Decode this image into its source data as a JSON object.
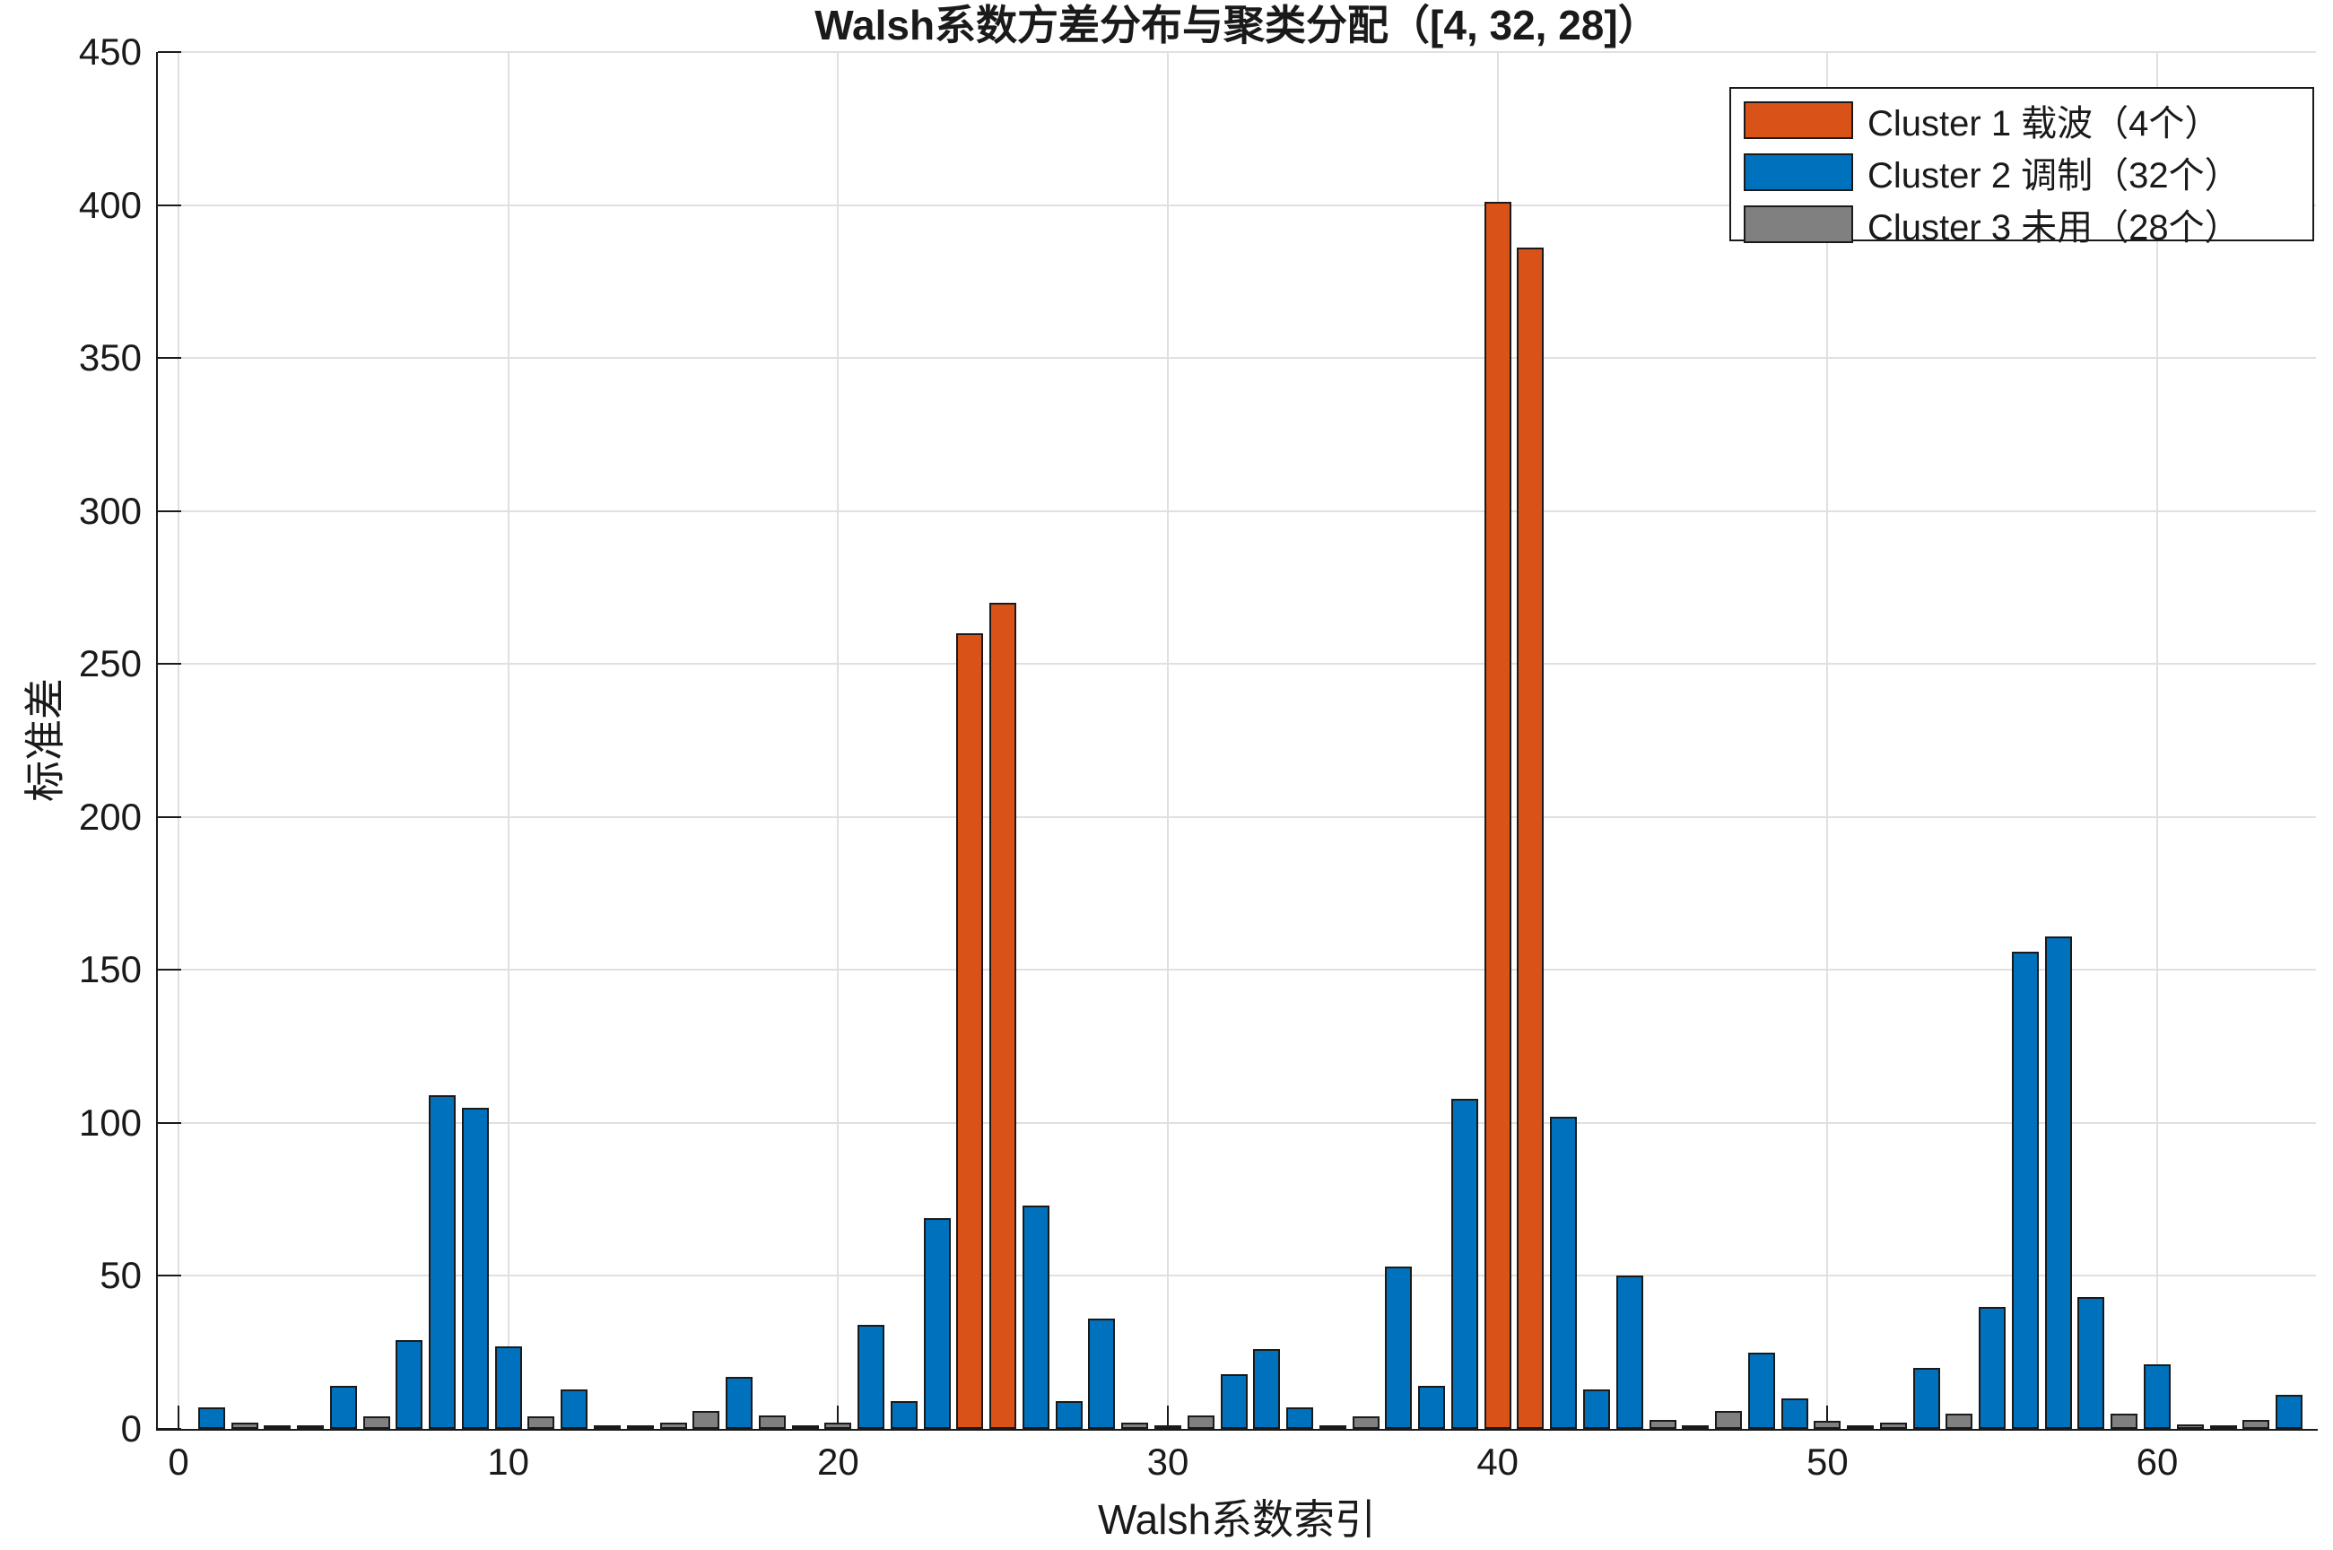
{
  "figure": {
    "title": "Walsh系数方差分布与聚类分配（[4, 32, 28]）",
    "xlabel": "Walsh系数索引",
    "ylabel": "标准差"
  },
  "legend": {
    "position": "top-right",
    "entries": [
      {
        "label": "Cluster 1 载波（4个）",
        "color": "#D95319"
      },
      {
        "label": "Cluster 2 调制（32个）",
        "color": "#0072BD"
      },
      {
        "label": "Cluster 3 未用（28个）",
        "color": "#808080"
      }
    ]
  },
  "colors": {
    "background": "#ffffff",
    "axis": "#1a1a1a",
    "grid": "#e0e0e0",
    "bar_edge": "#1a1a1a",
    "cluster1": "#D95319",
    "cluster2": "#0072BD",
    "cluster3": "#808080"
  },
  "chart_data": {
    "type": "bar",
    "title": "Walsh系数方差分布与聚类分配（[4, 32, 28]）",
    "xlabel": "Walsh系数索引",
    "ylabel": "标准差",
    "grid": true,
    "legend_position": "top-right",
    "xlim": [
      -0.63,
      64.81
    ],
    "ylim": [
      0,
      450
    ],
    "x_ticks": [
      0,
      10,
      20,
      30,
      40,
      50,
      60
    ],
    "y_ticks": [
      0,
      50,
      100,
      150,
      200,
      250,
      300,
      350,
      400,
      450
    ],
    "x": [
      1,
      2,
      3,
      4,
      5,
      6,
      7,
      8,
      9,
      10,
      11,
      12,
      13,
      14,
      15,
      16,
      17,
      18,
      19,
      20,
      21,
      22,
      23,
      24,
      25,
      26,
      27,
      28,
      29,
      30,
      31,
      32,
      33,
      34,
      35,
      36,
      37,
      38,
      39,
      40,
      41,
      42,
      43,
      44,
      45,
      46,
      47,
      48,
      49,
      50,
      51,
      52,
      53,
      54,
      55,
      56,
      57,
      58,
      59,
      60,
      61,
      62,
      63,
      64
    ],
    "values": [
      7,
      2,
      0.7,
      1.3,
      14,
      4,
      29,
      109,
      105,
      27,
      4,
      13,
      1,
      0.3,
      2,
      6,
      17,
      4.5,
      1,
      2,
      34,
      9,
      69,
      260,
      270,
      73,
      9,
      36,
      2,
      1,
      4.5,
      18,
      26,
      7,
      1,
      4,
      53,
      14,
      108,
      401,
      386,
      102,
      13,
      50,
      3,
      0.7,
      6,
      25,
      10,
      2.5,
      1,
      2,
      20,
      5,
      40,
      156,
      161,
      43,
      5,
      21,
      1.5,
      0.5,
      3,
      11
    ],
    "clusters": [
      2,
      3,
      3,
      3,
      2,
      3,
      2,
      2,
      2,
      2,
      3,
      2,
      3,
      3,
      3,
      3,
      2,
      3,
      3,
      3,
      2,
      2,
      2,
      1,
      1,
      2,
      2,
      2,
      3,
      3,
      3,
      2,
      2,
      2,
      3,
      3,
      2,
      2,
      2,
      1,
      1,
      2,
      2,
      2,
      3,
      3,
      3,
      2,
      2,
      3,
      3,
      3,
      2,
      3,
      2,
      2,
      2,
      2,
      3,
      2,
      3,
      3,
      3,
      2
    ],
    "series": [
      {
        "name": "Cluster 1 载波（4个）",
        "color": "#D95319",
        "indices": [
          24,
          25,
          40,
          41
        ]
      },
      {
        "name": "Cluster 2 调制（32个）",
        "color": "#0072BD",
        "indices": [
          1,
          5,
          7,
          8,
          9,
          10,
          12,
          17,
          21,
          22,
          23,
          26,
          27,
          28,
          32,
          33,
          34,
          37,
          38,
          39,
          42,
          43,
          44,
          48,
          49,
          53,
          55,
          56,
          57,
          58,
          60,
          64
        ]
      },
      {
        "name": "Cluster 3 未用（28个）",
        "color": "#808080",
        "indices": [
          2,
          3,
          4,
          6,
          11,
          13,
          14,
          15,
          16,
          18,
          19,
          20,
          29,
          30,
          31,
          35,
          36,
          45,
          46,
          47,
          50,
          51,
          52,
          54,
          59,
          61,
          62,
          63
        ]
      }
    ]
  }
}
